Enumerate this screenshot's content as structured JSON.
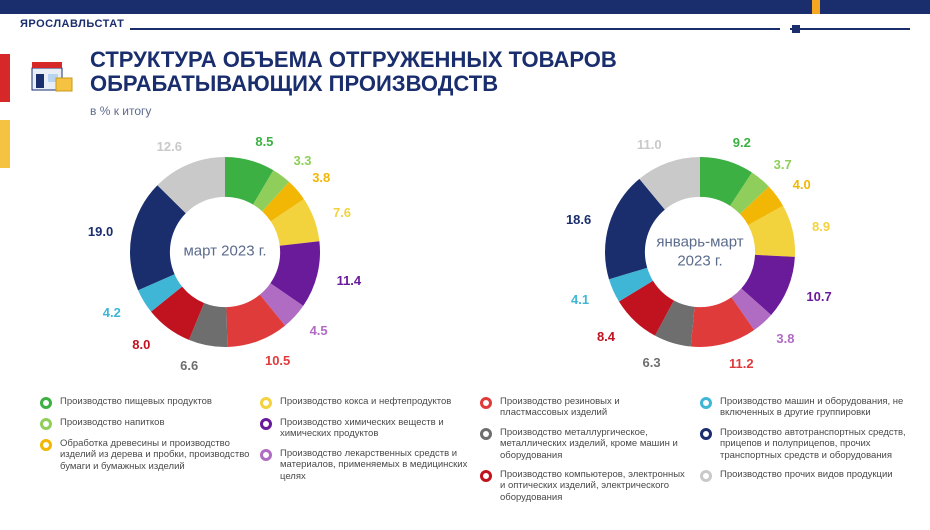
{
  "brand": "ЯРОСЛАВЛЬСТАТ",
  "title_line1": "СТРУКТУРА ОБЪЕМА ОТГРУЖЕННЫХ ТОВАРОВ",
  "title_line2": "ОБРАБАТЫВАЮЩИХ ПРОИЗВОДСТВ",
  "subtitle": "в % к итогу",
  "accent_navy": "#1a2e6e",
  "accent_orange": "#f5a623",
  "accent_red": "#d62828",
  "accent_yellow": "#f5c242",
  "chart_type": "donut",
  "donut_inner_ratio": 0.58,
  "background_color": "#ffffff",
  "label_fontsize": 13,
  "center_label_fontsize": 15,
  "charts": [
    {
      "id": "chart1",
      "center_label": "март 2023 г.",
      "slices": [
        {
          "value": 8.5,
          "color": "#3cb043"
        },
        {
          "value": 3.3,
          "color": "#8fce5a"
        },
        {
          "value": 3.8,
          "color": "#f2b705"
        },
        {
          "value": 7.6,
          "color": "#f2d23d"
        },
        {
          "value": 11.4,
          "color": "#6a1b9a"
        },
        {
          "value": 4.5,
          "color": "#b06bc2"
        },
        {
          "value": 10.5,
          "color": "#e03b3b"
        },
        {
          "value": 6.6,
          "color": "#6e6e6e"
        },
        {
          "value": 8.0,
          "color": "#c1121f"
        },
        {
          "value": 4.2,
          "color": "#3fb6d6"
        },
        {
          "value": 19.0,
          "color": "#1a2e6e"
        },
        {
          "value": 12.6,
          "color": "#c9c9c9"
        }
      ]
    },
    {
      "id": "chart2",
      "center_label": "январь-март\n2023 г.",
      "slices": [
        {
          "value": 9.2,
          "color": "#3cb043"
        },
        {
          "value": 3.7,
          "color": "#8fce5a"
        },
        {
          "value": 4.0,
          "color": "#f2b705"
        },
        {
          "value": 8.9,
          "color": "#f2d23d"
        },
        {
          "value": 10.7,
          "color": "#6a1b9a"
        },
        {
          "value": 3.8,
          "color": "#b06bc2"
        },
        {
          "value": 11.2,
          "color": "#e03b3b"
        },
        {
          "value": 6.3,
          "color": "#6e6e6e"
        },
        {
          "value": 8.4,
          "color": "#c1121f"
        },
        {
          "value": 4.1,
          "color": "#3fb6d6"
        },
        {
          "value": 18.6,
          "color": "#1a2e6e"
        },
        {
          "value": 11.0,
          "color": "#c9c9c9"
        }
      ]
    }
  ],
  "legend": [
    {
      "color": "#3cb043",
      "text": "Производство пищевых продуктов"
    },
    {
      "color": "#8fce5a",
      "text": "Производство напитков"
    },
    {
      "color": "#f2b705",
      "text": "Обработка древесины и производство изделий из дерева и пробки, производство бумаги и бумажных изделий"
    },
    {
      "color": "#f2d23d",
      "text": "Производство кокса и нефтепродуктов"
    },
    {
      "color": "#6a1b9a",
      "text": "Производство химических веществ и химических продуктов"
    },
    {
      "color": "#b06bc2",
      "text": "Производство лекарственных средств и материалов, применяемых в медицинских целях"
    },
    {
      "color": "#e03b3b",
      "text": "Производство резиновых и пластмассовых изделий"
    },
    {
      "color": "#6e6e6e",
      "text": "Производство металлургическое, металлических изделий, кроме машин и оборудования"
    },
    {
      "color": "#c1121f",
      "text": "Производство компьютеров, электронных и оптических изделий, электрического оборудования"
    },
    {
      "color": "#3fb6d6",
      "text": "Производство машин и оборудования, не включенных в другие группировки"
    },
    {
      "color": "#1a2e6e",
      "text": "Производство автотранспортных средств, прицепов и полуприцепов, прочих транспортных средств и оборудования"
    },
    {
      "color": "#c9c9c9",
      "text": "Производство прочих видов продукции"
    }
  ],
  "legend_columns": 4,
  "legend_items_per_col": 3
}
